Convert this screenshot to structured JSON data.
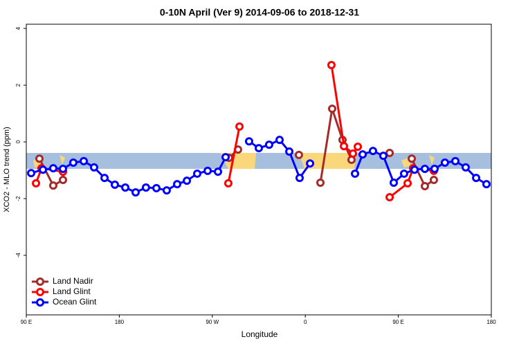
{
  "chart_data": {
    "type": "line",
    "title": "0-10N April (Ver 9)   2014-09-06 to 2018-12-31",
    "xlabel": "Longitude",
    "ylabel": "XCO2 - MLO trend (ppm)",
    "xlim": [
      90,
      540
    ],
    "ylim": [
      -6.1,
      4.15
    ],
    "xticks": [
      {
        "value": 90,
        "label": "90 E"
      },
      180,
      {
        "value": 270,
        "label": "90 W"
      },
      {
        "value": 360,
        "label": "0"
      },
      {
        "value": 450,
        "label": "90 E"
      },
      {
        "value": 540,
        "label": "180"
      }
    ],
    "yticks": [
      -4,
      -2,
      0,
      2,
      4
    ],
    "legend": "bottom-left",
    "series": [
      {
        "name": "Land Nadir",
        "color": "#a52a2a",
        "x": [
          102.7,
          116.1,
          125.5,
          null,
          286.2,
          294.9,
          null,
          353.8,
          null,
          374.6,
          386,
          396,
          404.7,
          null,
          441.6,
          null,
          463,
          475.7,
          484.4
        ],
        "values": [
          -0.59,
          -1.54,
          -1.34,
          null,
          -0.56,
          -0.27,
          null,
          -0.46,
          null,
          -1.44,
          1.17,
          0.07,
          -0.63,
          null,
          -0.39,
          null,
          -0.59,
          -1.56,
          -1.34
        ]
      },
      {
        "name": "Land Glint",
        "color": "#ff0000",
        "x": [
          99.4,
          104.7,
          125.5,
          null,
          285.5,
          296.3,
          null,
          385.3,
          397.4,
          406.1,
          410.8,
          null,
          441.6,
          459,
          464.3,
          484.4
        ],
        "values": [
          -1.46,
          -0.93,
          -1.05,
          null,
          -1.46,
          0.54,
          null,
          2.71,
          -0.15,
          -0.41,
          -0.17,
          null,
          -1.95,
          -1.46,
          -0.93,
          -1.02
        ]
      },
      {
        "name": "Ocean Glint",
        "color": "#0000ff",
        "x": [
          94.7,
          106.1,
          116.1,
          125.5,
          135.5,
          145.6,
          155.6,
          165.7,
          175.7,
          185.8,
          195.8,
          205.8,
          215.9,
          225.9,
          236,
          245.4,
          255.4,
          265.5,
          275.5,
          282.9,
          null,
          305.6,
          315,
          325,
          335.1,
          344.5,
          354.5,
          364.6,
          null,
          408.1,
          415.5,
          425.5,
          435.5,
          445.6,
          455.6,
          465.7,
          475.7,
          485.1,
          495.1,
          505.2,
          515.2,
          525.3,
          535.3
        ],
        "values": [
          -1.1,
          -0.98,
          -0.93,
          -0.95,
          -0.73,
          -0.68,
          -0.9,
          -1.27,
          -1.51,
          -1.61,
          -1.78,
          -1.61,
          -1.63,
          -1.71,
          -1.49,
          -1.37,
          -1.12,
          -1.02,
          -1.05,
          -0.54,
          null,
          0.02,
          -0.22,
          -0.1,
          0.07,
          -0.34,
          -1.27,
          -0.76,
          null,
          -1.12,
          -0.44,
          -0.32,
          -0.49,
          -1.44,
          -1.12,
          -0.98,
          -0.95,
          -0.95,
          -0.73,
          -0.68,
          -0.9,
          -1.27,
          -1.49
        ]
      }
    ]
  }
}
